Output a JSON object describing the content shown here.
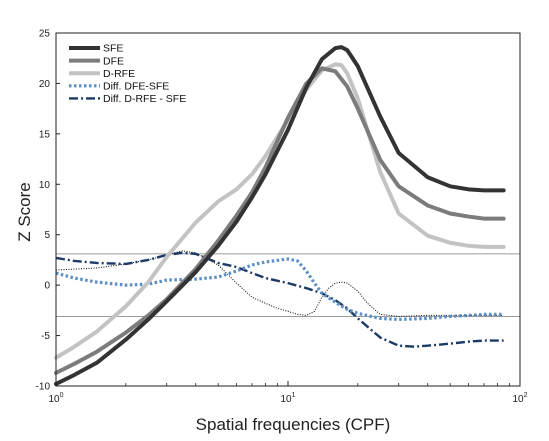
{
  "chart_data": {
    "type": "line",
    "title": "",
    "xlabel": "Spatial frequencies (CPF)",
    "ylabel": "Z Score",
    "xscale": "log",
    "xlim": [
      1,
      100
    ],
    "ylim": [
      -10,
      25
    ],
    "xticks": [
      1,
      10,
      100
    ],
    "xtick_labels": [
      {
        "base": "10",
        "exp": "0"
      },
      {
        "base": "10",
        "exp": "1"
      },
      {
        "base": "10",
        "exp": "2"
      }
    ],
    "yticks": [
      -10,
      -5,
      0,
      5,
      10,
      15,
      20,
      25
    ],
    "ytick_labels": [
      "-10",
      "-5",
      "0",
      "5",
      "10",
      "15",
      "20",
      "25"
    ],
    "grid": false,
    "legend_position": "top-left",
    "reference_lines": [
      3.1,
      -3.1
    ],
    "series": [
      {
        "name": "SFE",
        "color": "#333333",
        "style": "solid",
        "x": [
          1,
          1.2,
          1.5,
          2,
          2.5,
          3,
          4,
          5,
          6,
          7,
          8,
          10,
          12,
          14,
          16,
          17,
          18,
          20,
          25,
          30,
          40,
          50,
          60,
          70,
          85
        ],
        "y": [
          -9.8,
          -8.9,
          -7.7,
          -5.4,
          -3.4,
          -1.6,
          1.3,
          3.9,
          6.3,
          8.7,
          11.0,
          15.4,
          19.6,
          22.4,
          23.5,
          23.6,
          23.3,
          21.7,
          16.7,
          13.1,
          10.7,
          9.8,
          9.5,
          9.4,
          9.4
        ]
      },
      {
        "name": "DFE",
        "color": "#7c7c7c",
        "style": "solid",
        "x": [
          1,
          1.2,
          1.5,
          2,
          2.5,
          3,
          4,
          5,
          6,
          7,
          8,
          10,
          12,
          14,
          16,
          18,
          20,
          25,
          30,
          40,
          50,
          60,
          70,
          85
        ],
        "y": [
          -8.7,
          -7.8,
          -6.6,
          -4.7,
          -3.0,
          -1.4,
          1.6,
          4.4,
          6.9,
          9.2,
          11.7,
          16.6,
          20.0,
          21.5,
          21.2,
          19.7,
          17.5,
          12.4,
          9.8,
          7.9,
          7.1,
          6.8,
          6.6,
          6.6
        ]
      },
      {
        "name": "D-RFE",
        "color": "#c3c3c3",
        "style": "solid",
        "x": [
          1,
          1.2,
          1.5,
          2,
          2.5,
          3,
          4,
          5,
          6,
          7,
          8,
          10,
          12,
          14,
          16,
          17,
          18,
          20,
          25,
          30,
          40,
          50,
          60,
          70,
          85
        ],
        "y": [
          -7.2,
          -6.1,
          -4.6,
          -2.1,
          0.3,
          2.8,
          6.2,
          8.3,
          9.5,
          11.0,
          12.8,
          16.4,
          19.4,
          21.3,
          21.9,
          21.8,
          21.0,
          18.5,
          11.2,
          7.1,
          4.9,
          4.2,
          3.9,
          3.8,
          3.8
        ]
      },
      {
        "name": "Diff. DFE-SFE",
        "color": "#5b8ec4",
        "style": "dotted",
        "x": [
          1,
          1.2,
          1.5,
          2,
          2.5,
          3,
          4,
          5,
          6,
          7,
          8,
          10,
          11,
          12,
          13,
          14,
          16,
          18,
          20,
          25,
          30,
          40,
          50,
          60,
          70,
          85
        ],
        "y": [
          1.2,
          0.7,
          0.3,
          0.0,
          0.1,
          0.5,
          0.6,
          0.8,
          1.4,
          2.0,
          2.3,
          2.6,
          2.4,
          1.4,
          0.2,
          -0.8,
          -1.7,
          -2.4,
          -2.8,
          -3.3,
          -3.4,
          -3.3,
          -3.1,
          -3.0,
          -2.9,
          -2.9
        ]
      },
      {
        "name": "Diff. D-RFE - SFE",
        "color": "#1b3a66",
        "style": "dashdot",
        "x": [
          1,
          1.2,
          1.5,
          2,
          2.5,
          3,
          3.5,
          4,
          5,
          6,
          7,
          8,
          10,
          12,
          14,
          16,
          18,
          20,
          25,
          30,
          35,
          40,
          50,
          60,
          70,
          85
        ],
        "y": [
          2.7,
          2.4,
          2.2,
          2.1,
          2.5,
          3.0,
          3.2,
          3.1,
          2.2,
          1.8,
          1.2,
          0.7,
          0.2,
          -0.3,
          -0.8,
          -1.5,
          -2.3,
          -3.3,
          -5.2,
          -6.0,
          -6.1,
          -6.0,
          -5.8,
          -5.6,
          -5.5,
          -5.5
        ]
      },
      {
        "name": "",
        "color": "#000000",
        "style": "thin-dotted",
        "x": [
          1,
          1.5,
          2,
          2.5,
          3,
          3.5,
          4,
          5,
          6,
          7,
          8,
          9,
          10,
          11,
          12,
          13,
          14,
          15,
          16,
          17,
          18,
          20,
          22,
          25,
          30,
          40,
          60,
          85
        ],
        "y": [
          1.5,
          1.7,
          2.1,
          2.5,
          3.0,
          3.4,
          3.2,
          2.0,
          0.2,
          -1.2,
          -1.8,
          -2.3,
          -2.6,
          -2.9,
          -3.0,
          -2.6,
          -1.2,
          -0.3,
          0.2,
          0.3,
          0.2,
          -0.6,
          -1.8,
          -2.9,
          -3.1,
          -3.0,
          -3.0,
          -3.0
        ]
      }
    ]
  }
}
